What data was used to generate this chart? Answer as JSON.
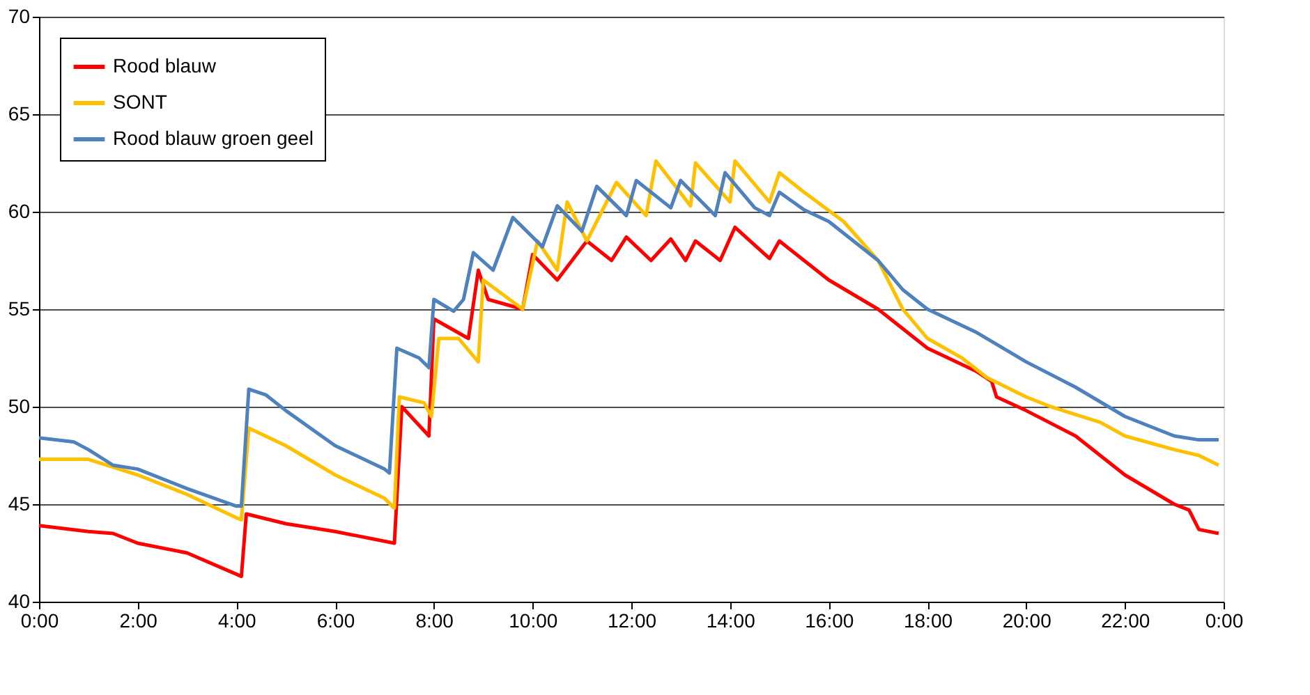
{
  "chart_data": {
    "type": "line",
    "xlim": [
      0,
      24
    ],
    "ylim": [
      40,
      70
    ],
    "yticks": [
      40,
      45,
      50,
      55,
      60,
      65,
      70
    ],
    "xticks": [
      {
        "value": 0,
        "label": "0:00"
      },
      {
        "value": 2,
        "label": "2:00"
      },
      {
        "value": 4,
        "label": "4:00"
      },
      {
        "value": 6,
        "label": "6:00"
      },
      {
        "value": 8,
        "label": "8:00"
      },
      {
        "value": 10,
        "label": "10:00"
      },
      {
        "value": 12,
        "label": "12:00"
      },
      {
        "value": 14,
        "label": "14:00"
      },
      {
        "value": 16,
        "label": "16:00"
      },
      {
        "value": 18,
        "label": "18:00"
      },
      {
        "value": 20,
        "label": "20:00"
      },
      {
        "value": 22,
        "label": "22:00"
      },
      {
        "value": 24,
        "label": "0:00"
      }
    ],
    "grid": "y",
    "legend": "top left",
    "marker": "none",
    "line_style": "solid",
    "series": [
      {
        "name": "Rood blauw",
        "color": "#ff0000",
        "x": [
          0,
          1,
          1.5,
          2,
          3,
          4.1,
          4.2,
          5,
          6,
          7.2,
          7.35,
          7.9,
          8.0,
          8.7,
          8.9,
          9.1,
          9.8,
          10.0,
          10.5,
          11.1,
          11.6,
          11.9,
          12.4,
          12.8,
          13.1,
          13.3,
          13.8,
          14.1,
          14.8,
          15.0,
          16,
          17,
          18,
          19,
          19.3,
          19.4,
          20,
          21,
          22,
          23,
          23.3,
          23.5,
          23.9
        ],
        "values": [
          43.9,
          43.6,
          43.5,
          43.0,
          42.5,
          41.3,
          44.5,
          44.0,
          43.6,
          43.0,
          50.0,
          48.5,
          54.5,
          53.5,
          57.0,
          55.5,
          55.0,
          57.8,
          56.5,
          58.5,
          57.5,
          58.7,
          57.5,
          58.6,
          57.5,
          58.5,
          57.5,
          59.2,
          57.6,
          58.5,
          56.5,
          55.0,
          53.0,
          51.8,
          51.3,
          50.5,
          49.8,
          48.5,
          46.5,
          45.0,
          44.7,
          43.7,
          43.5
        ]
      },
      {
        "name": "SONT",
        "color": "#ffc000",
        "x": [
          0,
          1,
          2,
          3,
          4,
          4.1,
          4.25,
          5,
          6,
          7,
          7.2,
          7.3,
          7.8,
          7.95,
          8.1,
          8.5,
          8.9,
          9.0,
          9.8,
          10.1,
          10.5,
          10.7,
          11.1,
          11.7,
          12.3,
          12.5,
          13.2,
          13.3,
          14.0,
          14.1,
          14.8,
          15.0,
          15.5,
          16.3,
          17,
          17.5,
          18,
          18.7,
          19.2,
          20,
          20.5,
          21.5,
          22,
          23,
          23.5,
          23.9
        ],
        "values": [
          47.3,
          47.3,
          46.5,
          45.5,
          44.3,
          44.2,
          48.9,
          48.0,
          46.5,
          45.3,
          44.8,
          50.5,
          50.2,
          49.5,
          53.5,
          53.5,
          52.3,
          56.5,
          55.0,
          58.5,
          57.0,
          60.5,
          58.5,
          61.5,
          59.8,
          62.6,
          60.3,
          62.5,
          60.5,
          62.6,
          60.5,
          62.0,
          61.0,
          59.5,
          57.5,
          55.0,
          53.5,
          52.5,
          51.5,
          50.5,
          50.0,
          49.2,
          48.5,
          47.8,
          47.5,
          47.0
        ]
      },
      {
        "name": "Rood blauw groen geel",
        "color": "#4f81bd",
        "x": [
          0,
          0.7,
          1,
          1.5,
          2,
          3,
          4,
          4.1,
          4.25,
          4.6,
          5,
          6,
          7,
          7.1,
          7.25,
          7.7,
          7.9,
          8.0,
          8.4,
          8.6,
          8.8,
          9.2,
          9.6,
          10.2,
          10.5,
          11.0,
          11.3,
          11.9,
          12.1,
          12.8,
          13.0,
          13.7,
          13.9,
          14.5,
          14.8,
          15.0,
          15.5,
          16,
          17,
          17.5,
          18,
          19,
          20,
          21,
          22,
          23,
          23.5,
          23.9
        ],
        "values": [
          48.4,
          48.2,
          47.8,
          47.0,
          46.8,
          45.8,
          44.9,
          44.9,
          50.9,
          50.6,
          49.8,
          48.0,
          46.8,
          46.6,
          53.0,
          52.5,
          52.0,
          55.5,
          54.9,
          55.5,
          57.9,
          57.0,
          59.7,
          58.2,
          60.3,
          59.0,
          61.3,
          59.8,
          61.6,
          60.2,
          61.6,
          59.8,
          62.0,
          60.2,
          59.8,
          61.0,
          60.1,
          59.5,
          57.5,
          56.0,
          55.0,
          53.8,
          52.3,
          51.0,
          49.5,
          48.5,
          48.3,
          48.3
        ]
      }
    ]
  }
}
